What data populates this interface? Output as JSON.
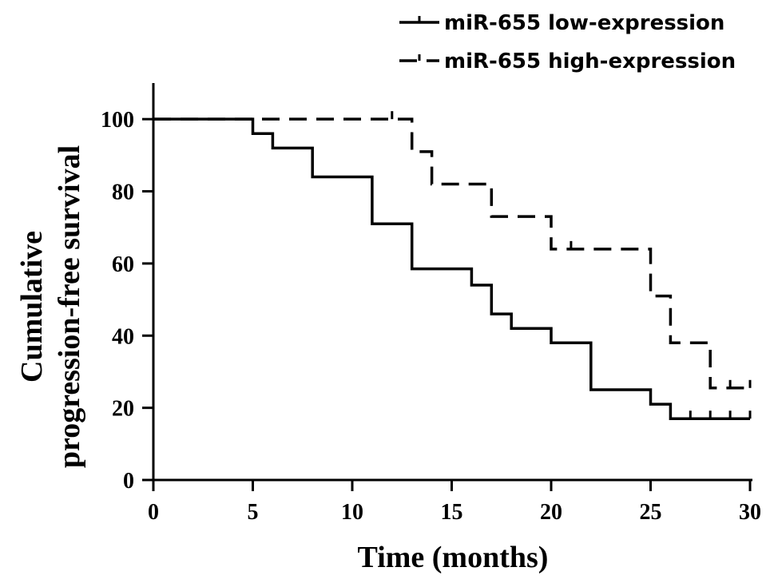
{
  "chart_data": {
    "type": "line",
    "subtype": "kaplan-meier step",
    "xlabel": "Time (months)",
    "ylabel_lines": [
      "Cumulative",
      "progression-free survival"
    ],
    "xlim": [
      0,
      30
    ],
    "ylim": [
      0,
      110
    ],
    "xticks": [
      0,
      5,
      10,
      15,
      20,
      25,
      30
    ],
    "yticks": [
      0,
      20,
      40,
      60,
      80,
      100
    ],
    "grid": false,
    "legend_position": "top-right",
    "series": [
      {
        "name": "miR-655 low-expression",
        "style": "solid",
        "steps": [
          [
            0,
            100
          ],
          [
            5,
            96
          ],
          [
            6,
            92
          ],
          [
            8,
            84
          ],
          [
            11,
            71
          ],
          [
            13,
            58.5
          ],
          [
            16,
            54
          ],
          [
            17,
            46
          ],
          [
            18,
            42
          ],
          [
            20,
            38
          ],
          [
            22,
            25
          ],
          [
            25,
            21
          ],
          [
            26,
            17
          ],
          [
            30,
            17
          ]
        ],
        "censored": [
          [
            27,
            17
          ],
          [
            28,
            17
          ],
          [
            29,
            17
          ],
          [
            30,
            17
          ]
        ]
      },
      {
        "name": "miR-655 high-expression",
        "style": "dashed",
        "steps": [
          [
            0,
            100
          ],
          [
            13,
            91
          ],
          [
            14,
            82
          ],
          [
            17,
            73
          ],
          [
            20,
            64
          ],
          [
            25,
            51
          ],
          [
            26,
            38
          ],
          [
            28,
            25.5
          ],
          [
            30,
            25.5
          ]
        ],
        "censored": [
          [
            12,
            100
          ],
          [
            21,
            64
          ],
          [
            29,
            25.5
          ],
          [
            30,
            25.5
          ]
        ]
      }
    ]
  }
}
